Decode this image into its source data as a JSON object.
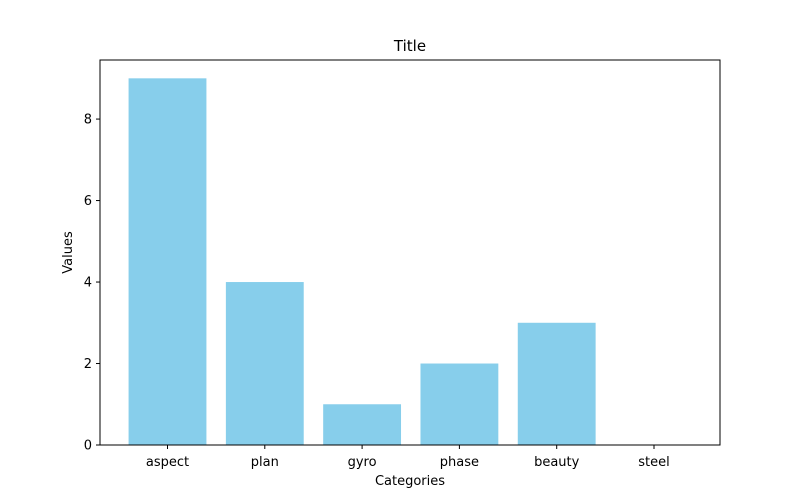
{
  "chart_data": {
    "type": "bar",
    "title": "Title",
    "xlabel": "Categories",
    "ylabel": "Values",
    "categories": [
      "aspect",
      "plan",
      "gyro",
      "phase",
      "beauty",
      "steel"
    ],
    "values": [
      9,
      4,
      1,
      2,
      3,
      0
    ],
    "ylim": [
      0,
      9.45
    ],
    "yticks": [
      0,
      2,
      4,
      6,
      8
    ],
    "bar_color": "#87CEEB",
    "grid": false,
    "legend": "none"
  }
}
